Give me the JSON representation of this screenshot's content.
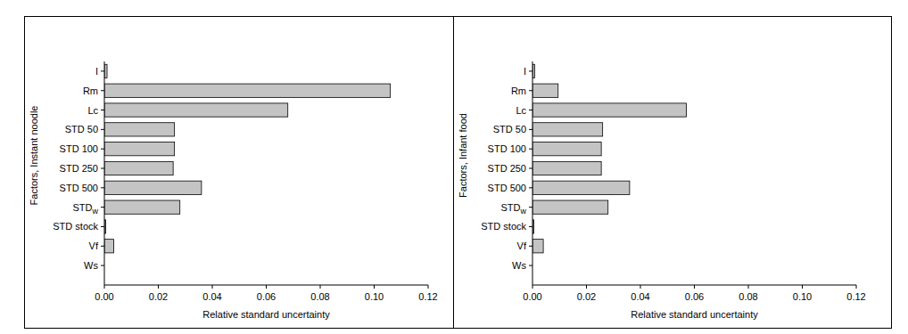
{
  "chart_data": [
    {
      "type": "bar",
      "orientation": "horizontal",
      "color": "#c4c4c4",
      "y_label": "Factors, Instant noodle",
      "x_label": "Relative standard uncertainty",
      "categories": [
        "I",
        "Rm",
        "Lc",
        "STD 50",
        "STD 100",
        "STD 250",
        "STD 500",
        "STDw",
        "STD stock",
        "Vf",
        "Ws"
      ],
      "values": [
        0.001,
        0.106,
        0.068,
        0.026,
        0.026,
        0.0255,
        0.036,
        0.028,
        0.0005,
        0.0035,
        0
      ],
      "xlim": [
        0,
        0.12
      ],
      "xticks": [
        {
          "value": 0,
          "label": "0.00"
        },
        {
          "value": 0.02,
          "label": "0.02"
        },
        {
          "value": 0.04,
          "label": "0.04"
        },
        {
          "value": 0.06,
          "label": "0.06"
        },
        {
          "value": 0.08,
          "label": "0.08"
        },
        {
          "value": 0.1,
          "label": "0.10"
        },
        {
          "value": 0.12,
          "label": "0.12"
        }
      ],
      "grid": false
    },
    {
      "type": "bar",
      "orientation": "horizontal",
      "color": "#c4c4c4",
      "y_label": "Factors, Infant food",
      "x_label": "Relative standard uncertainty",
      "categories": [
        "I",
        "Rm",
        "Lc",
        "STD 50",
        "STD 100",
        "STD 250",
        "STD 500",
        "STDw",
        "STD stock",
        "Vf",
        "Ws"
      ],
      "values": [
        0.0008,
        0.0095,
        0.057,
        0.026,
        0.0255,
        0.0255,
        0.036,
        0.028,
        0.0005,
        0.004,
        0
      ],
      "xlim": [
        0,
        0.12
      ],
      "xticks": [
        {
          "value": 0,
          "label": "0.00"
        },
        {
          "value": 0.02,
          "label": "0.02"
        },
        {
          "value": 0.04,
          "label": "0.04"
        },
        {
          "value": 0.06,
          "label": "0.06"
        },
        {
          "value": 0.08,
          "label": "0.08"
        },
        {
          "value": 0.1,
          "label": "0.10"
        },
        {
          "value": 0.12,
          "label": "0.12"
        }
      ],
      "grid": false
    }
  ]
}
